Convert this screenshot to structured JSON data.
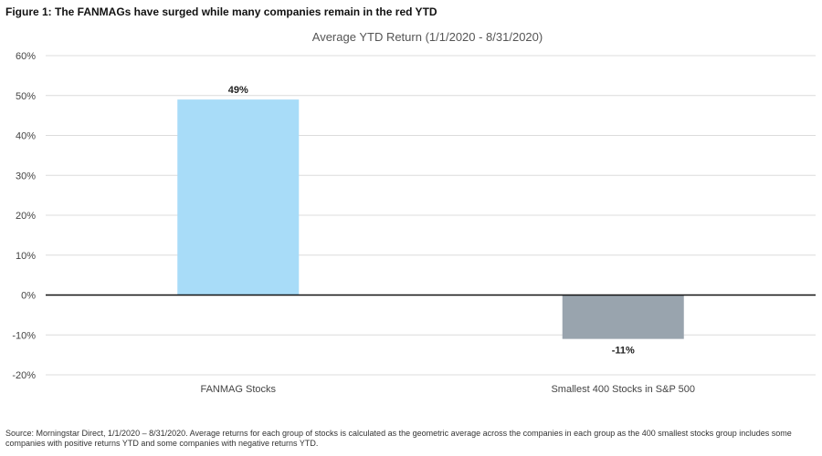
{
  "figure_title": "Figure 1: The FANMAGs have surged while many companies remain in the red YTD",
  "source_note": "Source: Morningstar Direct, 1/1/2020 – 8/31/2020. Average returns for each group of stocks is calculated as the geometric average across the companies in each group as the 400 smallest stocks group includes some companies with positive returns YTD and some companies with negative returns YTD.",
  "chart_data": {
    "type": "bar",
    "title": "Average YTD Return (1/1/2020  - 8/31/2020)",
    "categories": [
      "FANMAG Stocks",
      "Smallest 400 Stocks in S&P 500"
    ],
    "values": [
      49,
      -11
    ],
    "data_labels": [
      "49%",
      "-11%"
    ],
    "colors": [
      "#a8dcf8",
      "#99a4ae"
    ],
    "ylim": [
      -20,
      60
    ],
    "yticks": [
      60,
      50,
      40,
      30,
      20,
      10,
      0,
      -10,
      -20
    ],
    "ytick_labels": [
      "60%",
      "50%",
      "40%",
      "30%",
      "20%",
      "10%",
      "0%",
      "-10%",
      "-20%"
    ],
    "grid": true,
    "xlabel": "",
    "ylabel": ""
  }
}
